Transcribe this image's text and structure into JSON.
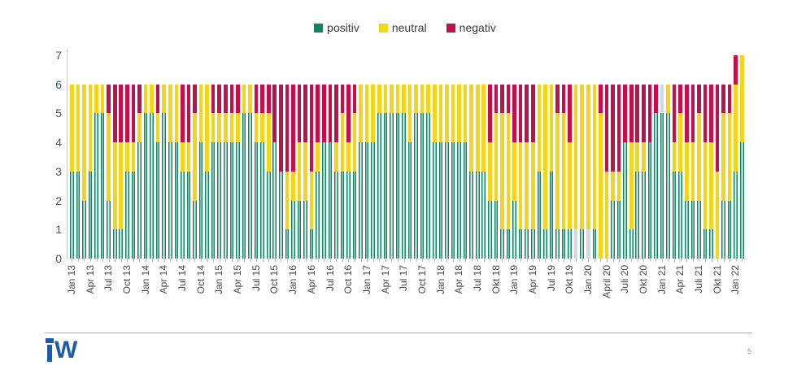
{
  "page": {
    "page_number": "5"
  },
  "legend": {
    "items": [
      {
        "label": "positiv",
        "color": "#128465"
      },
      {
        "label": "neutral",
        "color": "#f3d51a"
      },
      {
        "label": "negativ",
        "color": "#c3104b"
      }
    ]
  },
  "colors": {
    "positiv": "#128465",
    "positiv_fill_center": "#e7f4ee",
    "neutral": "#f3d51a",
    "negativ": "#c3104b",
    "pale_segment": "#ccdbe6",
    "axis_text": "#44546a",
    "xlabel_text": "#4a4a49",
    "logo_blue": "#1d5ca7",
    "footer_rule": "#a9a9a9"
  },
  "chart_data": {
    "type": "bar",
    "stacked": true,
    "series_names": [
      "positiv",
      "neutral",
      "negativ"
    ],
    "ylim": [
      0,
      7
    ],
    "y_ticks": [
      0,
      1,
      2,
      3,
      4,
      5,
      6,
      7
    ],
    "grid": false,
    "legend_position": "top-center",
    "x_label_every_n_months": 3,
    "note_pale": "bars with a 4th pale segment carry pale>0; palePos marks whether it sits at bottom or top of the stack",
    "bars": [
      {
        "label": "Jan 13",
        "p": 3,
        "n": 3,
        "neg": 0
      },
      {
        "label": "",
        "p": 3,
        "n": 3,
        "neg": 0
      },
      {
        "label": "",
        "p": 2,
        "n": 4,
        "neg": 0
      },
      {
        "label": "Apr 13",
        "p": 3,
        "n": 3,
        "neg": 0
      },
      {
        "label": "",
        "p": 5,
        "n": 1,
        "neg": 0
      },
      {
        "label": "",
        "p": 5,
        "n": 1,
        "neg": 0
      },
      {
        "label": "Jul 13",
        "p": 2,
        "n": 3,
        "neg": 1
      },
      {
        "label": "",
        "p": 1,
        "n": 3,
        "neg": 2
      },
      {
        "label": "",
        "p": 1,
        "n": 3,
        "neg": 2
      },
      {
        "label": "Oct 13",
        "p": 3,
        "n": 1,
        "neg": 2
      },
      {
        "label": "",
        "p": 3,
        "n": 1,
        "neg": 2
      },
      {
        "label": "",
        "p": 4,
        "n": 1,
        "neg": 1
      },
      {
        "label": "Jan 14",
        "p": 5,
        "n": 1,
        "neg": 0
      },
      {
        "label": "",
        "p": 5,
        "n": 1,
        "neg": 0
      },
      {
        "label": "",
        "p": 4,
        "n": 1,
        "neg": 1
      },
      {
        "label": "Apr 14",
        "p": 5,
        "n": 1,
        "neg": 0
      },
      {
        "label": "",
        "p": 4,
        "n": 2,
        "neg": 0
      },
      {
        "label": "",
        "p": 4,
        "n": 2,
        "neg": 0
      },
      {
        "label": "Jul 14",
        "p": 3,
        "n": 1,
        "neg": 2
      },
      {
        "label": "",
        "p": 3,
        "n": 1,
        "neg": 2
      },
      {
        "label": "",
        "p": 2,
        "n": 3,
        "neg": 1
      },
      {
        "label": "Oct 14",
        "p": 4,
        "n": 2,
        "neg": 0
      },
      {
        "label": "",
        "p": 3,
        "n": 3,
        "neg": 0
      },
      {
        "label": "",
        "p": 4,
        "n": 1,
        "neg": 1
      },
      {
        "label": "Jan 15",
        "p": 4,
        "n": 1,
        "neg": 1
      },
      {
        "label": "",
        "p": 4,
        "n": 1,
        "neg": 1
      },
      {
        "label": "",
        "p": 4,
        "n": 1,
        "neg": 1
      },
      {
        "label": "Apr 15",
        "p": 4,
        "n": 1,
        "neg": 1
      },
      {
        "label": "",
        "p": 5,
        "n": 1,
        "neg": 0
      },
      {
        "label": "",
        "p": 5,
        "n": 1,
        "neg": 0
      },
      {
        "label": "Jul 15",
        "p": 4,
        "n": 1,
        "neg": 1
      },
      {
        "label": "",
        "p": 4,
        "n": 1,
        "neg": 1
      },
      {
        "label": "",
        "p": 3,
        "n": 2,
        "neg": 1
      },
      {
        "label": "Oct 15",
        "p": 4,
        "n": 0,
        "neg": 2
      },
      {
        "label": "",
        "p": 3,
        "n": 0,
        "neg": 3
      },
      {
        "label": "",
        "p": 1,
        "n": 2,
        "neg": 3
      },
      {
        "label": "Jan 16",
        "p": 2,
        "n": 1,
        "neg": 3
      },
      {
        "label": "",
        "p": 2,
        "n": 2,
        "neg": 2
      },
      {
        "label": "",
        "p": 2,
        "n": 2,
        "neg": 2
      },
      {
        "label": "Apr 16",
        "p": 1,
        "n": 2,
        "neg": 3
      },
      {
        "label": "",
        "p": 3,
        "n": 1,
        "neg": 2
      },
      {
        "label": "",
        "p": 4,
        "n": 0,
        "neg": 2
      },
      {
        "label": "Jul 16",
        "p": 4,
        "n": 0,
        "neg": 2
      },
      {
        "label": "",
        "p": 3,
        "n": 1,
        "neg": 2
      },
      {
        "label": "",
        "p": 3,
        "n": 2,
        "neg": 1
      },
      {
        "label": "Oct 16",
        "p": 3,
        "n": 1,
        "neg": 2
      },
      {
        "label": "",
        "p": 3,
        "n": 2,
        "neg": 1
      },
      {
        "label": "",
        "p": 4,
        "n": 2,
        "neg": 0
      },
      {
        "label": "Jan 17",
        "p": 4,
        "n": 2,
        "neg": 0
      },
      {
        "label": "",
        "p": 4,
        "n": 2,
        "neg": 0
      },
      {
        "label": "",
        "p": 5,
        "n": 1,
        "neg": 0
      },
      {
        "label": "Apr 17",
        "p": 5,
        "n": 1,
        "neg": 0
      },
      {
        "label": "",
        "p": 5,
        "n": 1,
        "neg": 0
      },
      {
        "label": "",
        "p": 5,
        "n": 1,
        "neg": 0
      },
      {
        "label": "Jul 17",
        "p": 5,
        "n": 1,
        "neg": 0
      },
      {
        "label": "",
        "p": 4,
        "n": 2,
        "neg": 0
      },
      {
        "label": "",
        "p": 5,
        "n": 1,
        "neg": 0
      },
      {
        "label": "Oct 17",
        "p": 5,
        "n": 1,
        "neg": 0
      },
      {
        "label": "",
        "p": 5,
        "n": 1,
        "neg": 0
      },
      {
        "label": "",
        "p": 4,
        "n": 2,
        "neg": 0
      },
      {
        "label": "Jan 18",
        "p": 4,
        "n": 2,
        "neg": 0
      },
      {
        "label": "",
        "p": 4,
        "n": 2,
        "neg": 0
      },
      {
        "label": "",
        "p": 4,
        "n": 2,
        "neg": 0
      },
      {
        "label": "Apr 18",
        "p": 4,
        "n": 2,
        "neg": 0
      },
      {
        "label": "",
        "p": 4,
        "n": 2,
        "neg": 0
      },
      {
        "label": "",
        "p": 3,
        "n": 3,
        "neg": 0
      },
      {
        "label": "Jul 18",
        "p": 3,
        "n": 3,
        "neg": 0
      },
      {
        "label": "",
        "p": 3,
        "n": 3,
        "neg": 0
      },
      {
        "label": "",
        "p": 2,
        "n": 2,
        "neg": 2
      },
      {
        "label": "Okt 18",
        "p": 2,
        "n": 3,
        "neg": 1
      },
      {
        "label": "",
        "p": 1,
        "n": 4,
        "neg": 1
      },
      {
        "label": "",
        "p": 1,
        "n": 4,
        "neg": 1
      },
      {
        "label": "Jan 19",
        "p": 2,
        "n": 2,
        "neg": 2
      },
      {
        "label": "",
        "p": 1,
        "n": 3,
        "neg": 2
      },
      {
        "label": "",
        "p": 1,
        "n": 3,
        "neg": 2
      },
      {
        "label": "Apr 19",
        "p": 1,
        "n": 3,
        "neg": 2
      },
      {
        "label": "",
        "p": 3,
        "n": 3,
        "neg": 0
      },
      {
        "label": "",
        "p": 1,
        "n": 5,
        "neg": 0
      },
      {
        "label": "Jul 19",
        "p": 3,
        "n": 3,
        "neg": 0
      },
      {
        "label": "",
        "p": 1,
        "n": 4,
        "neg": 1
      },
      {
        "label": "",
        "p": 1,
        "n": 4,
        "neg": 1
      },
      {
        "label": "Okt 19",
        "p": 1,
        "n": 3,
        "neg": 2
      },
      {
        "label": "",
        "p": 0,
        "n": 5,
        "neg": 0,
        "pale": 1,
        "palePos": "bottom"
      },
      {
        "label": "",
        "p": 1,
        "n": 5,
        "neg": 0
      },
      {
        "label": "Jan 20",
        "p": 0,
        "n": 5,
        "neg": 0,
        "pale": 1,
        "palePos": "bottom"
      },
      {
        "label": "",
        "p": 1,
        "n": 5,
        "neg": 0
      },
      {
        "label": "",
        "p": 0,
        "n": 5,
        "neg": 1
      },
      {
        "label": "April 20",
        "p": 0,
        "n": 3,
        "neg": 3
      },
      {
        "label": "",
        "p": 2,
        "n": 1,
        "neg": 3
      },
      {
        "label": "",
        "p": 2,
        "n": 1,
        "neg": 3
      },
      {
        "label": "Juli 20",
        "p": 4,
        "n": 0,
        "neg": 2
      },
      {
        "label": "",
        "p": 1,
        "n": 3,
        "neg": 2
      },
      {
        "label": "",
        "p": 3,
        "n": 1,
        "neg": 2
      },
      {
        "label": "Okt 20",
        "p": 3,
        "n": 1,
        "neg": 2
      },
      {
        "label": "",
        "p": 4,
        "n": 0,
        "neg": 2
      },
      {
        "label": "",
        "p": 5,
        "n": 0,
        "neg": 1
      },
      {
        "label": "Jan 21",
        "p": 5,
        "n": 0,
        "neg": 0,
        "pale": 1,
        "palePos": "top"
      },
      {
        "label": "",
        "p": 5,
        "n": 1,
        "neg": 0
      },
      {
        "label": "",
        "p": 3,
        "n": 1,
        "neg": 2
      },
      {
        "label": "Apr 21",
        "p": 3,
        "n": 2,
        "neg": 1
      },
      {
        "label": "",
        "p": 2,
        "n": 2,
        "neg": 2
      },
      {
        "label": "",
        "p": 2,
        "n": 2,
        "neg": 2
      },
      {
        "label": "Juli 21",
        "p": 2,
        "n": 3,
        "neg": 1
      },
      {
        "label": "",
        "p": 1,
        "n": 3,
        "neg": 2
      },
      {
        "label": "",
        "p": 1,
        "n": 3,
        "neg": 2
      },
      {
        "label": "Okt 21",
        "p": 0,
        "n": 3,
        "neg": 3
      },
      {
        "label": "",
        "p": 2,
        "n": 3,
        "neg": 1
      },
      {
        "label": "",
        "p": 2,
        "n": 3,
        "neg": 1
      },
      {
        "label": "Jan 22",
        "p": 3,
        "n": 3,
        "neg": 1
      },
      {
        "label": "",
        "p": 4,
        "n": 3,
        "neg": 0
      }
    ]
  }
}
